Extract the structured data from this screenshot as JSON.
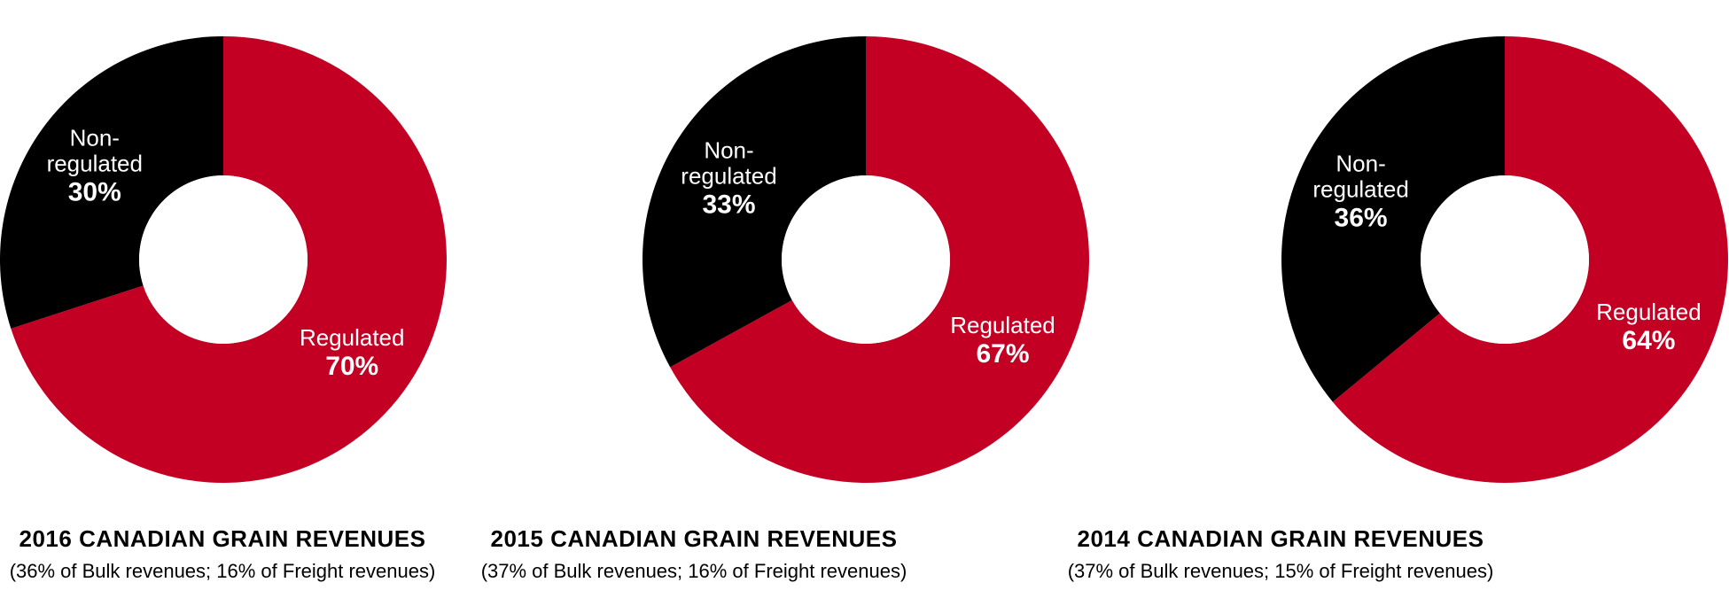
{
  "colors": {
    "regulated": "#c30024",
    "non_regulated": "#000000",
    "hole": "#ffffff",
    "label_text": "#ffffff"
  },
  "chart_data": [
    {
      "type": "pie",
      "donut": true,
      "title": "2016 CANADIAN GRAIN REVENUES",
      "subtitle": "(36% of Bulk revenues; 16% of Freight revenues)",
      "slices": [
        {
          "label_lines": [
            "Regulated"
          ],
          "value": 70,
          "value_label": "70%",
          "color": "#c30024"
        },
        {
          "label_lines": [
            "Non-",
            "regulated"
          ],
          "value": 30,
          "value_label": "30%",
          "color": "#000000"
        }
      ]
    },
    {
      "type": "pie",
      "donut": true,
      "title": "2015 CANADIAN GRAIN REVENUES",
      "subtitle": "(37% of Bulk revenues; 16% of Freight revenues)",
      "slices": [
        {
          "label_lines": [
            "Regulated"
          ],
          "value": 67,
          "value_label": "67%",
          "color": "#c30024"
        },
        {
          "label_lines": [
            "Non-",
            "regulated"
          ],
          "value": 33,
          "value_label": "33%",
          "color": "#000000"
        }
      ]
    },
    {
      "type": "pie",
      "donut": true,
      "title": "2014 CANADIAN GRAIN REVENUES",
      "subtitle": "(37% of Bulk revenues; 15% of Freight revenues)",
      "slices": [
        {
          "label_lines": [
            "Regulated"
          ],
          "value": 64,
          "value_label": "64%",
          "color": "#c30024"
        },
        {
          "label_lines": [
            "Non-",
            "regulated"
          ],
          "value": 36,
          "value_label": "36%",
          "color": "#000000"
        }
      ]
    }
  ]
}
